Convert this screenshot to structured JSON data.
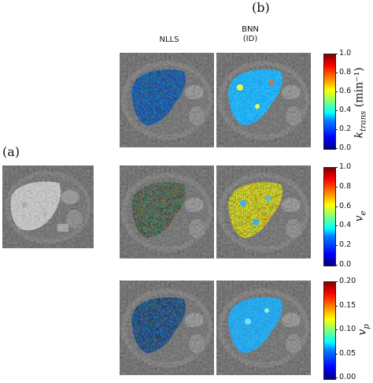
{
  "panel_labels": {
    "a": "(a)",
    "b": "(b)"
  },
  "columns": {
    "nlls": "NLLS",
    "bnn_line1": "BNN",
    "bnn_line2": "(ID)"
  },
  "colorbars": [
    {
      "label": "k_trans (min⁻¹)",
      "label_main": "k",
      "label_sub": "trans",
      "label_unit": "(min⁻¹)",
      "ticks": [
        "1.0",
        "0.8",
        "0.6",
        "0.4",
        "0.2",
        "0.0"
      ]
    },
    {
      "label": "v_e",
      "label_main": "v",
      "label_sub": "e",
      "label_unit": "",
      "ticks": [
        "1.0",
        "0.8",
        "0.6",
        "0.4",
        "0.2",
        "0.0"
      ]
    },
    {
      "label": "v_p",
      "label_main": "v",
      "label_sub": "p",
      "label_unit": "",
      "ticks": [
        "0.20",
        "0.15",
        "0.10",
        "0.05",
        "0.00"
      ]
    }
  ]
}
